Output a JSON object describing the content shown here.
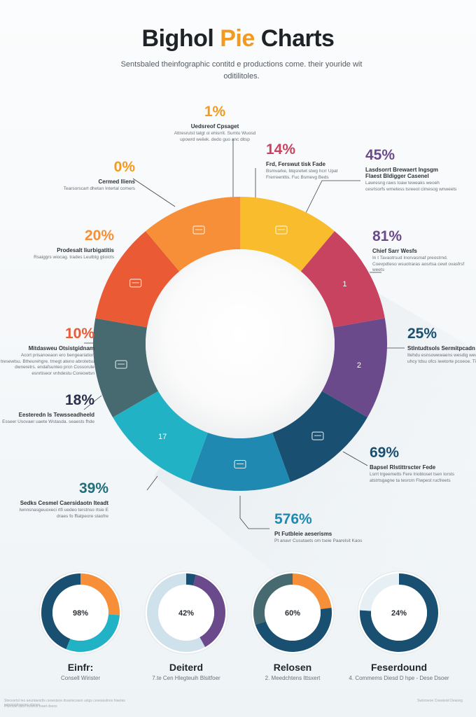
{
  "header": {
    "title_pre": "Bighol ",
    "title_accent": "Pie",
    "title_post": " Charts",
    "subtitle": "Sentsbaled theinfographic contitd e productions come. their youride wit oditilitoles."
  },
  "colors": {
    "yellow": "#f9bc2c",
    "crimson": "#c8435f",
    "purple": "#6b4a8c",
    "navy": "#194f71",
    "blue": "#1f89b2",
    "teal": "#22b2c5",
    "slate": "#466a6f",
    "red": "#ea5a35",
    "orange": "#f68f38"
  },
  "chart_data": [
    {
      "type": "pie",
      "title": "",
      "segments": [
        {
          "name": "Yellow",
          "value": 1,
          "color": "#f9bc2c"
        },
        {
          "name": "Crimson",
          "value": 1,
          "color": "#c8435f"
        },
        {
          "name": "Purple",
          "value": 1,
          "color": "#6b4a8c"
        },
        {
          "name": "Navy",
          "value": 1,
          "color": "#194f71"
        },
        {
          "name": "Blue",
          "value": 1,
          "color": "#1f89b2"
        },
        {
          "name": "Teal",
          "value": 1,
          "color": "#22b2c5"
        },
        {
          "name": "Slate",
          "value": 1,
          "color": "#466a6f"
        },
        {
          "name": "Red",
          "value": 1,
          "color": "#ea5a35"
        },
        {
          "name": "Orange",
          "value": 1,
          "color": "#f68f38"
        }
      ],
      "segment_text": [
        "",
        "1",
        "2",
        "",
        "",
        "17",
        "",
        "",
        ""
      ],
      "segment_icons": [
        "chat-icon",
        "",
        "",
        "vehicle-icon",
        "bucket-icon",
        "",
        "cart-icon",
        "home-icon",
        "tools-icon"
      ],
      "annotations": [
        {
          "value": "1%",
          "title": "Uedsreof Cpsaget",
          "desc": "Attresrutst tatgt oi ehisrrit. Sumtu Wuosd upowrd weliek. dedo guo anc ditsp",
          "color": "#f29a1f"
        },
        {
          "value": "14%",
          "title": "Frd, Ferswut tisk Fade",
          "desc": "Bsmvarke, btqsretwt stwg hcrr Upat Frerreenttis. Fuc Bsmevg Beds",
          "color": "#c8435f"
        },
        {
          "value": "45%",
          "title": "Lasdsorrt Brewaert Ingsgm",
          "title2": "Flaest Bldigger Casenel",
          "desc": "Lawresng raws toaw teweaks weoeh cesrtsorfs wmetess tsreeot cimesog wnweets",
          "color": "#6b4a8c"
        },
        {
          "value": "0%",
          "title": "Cermed lliens",
          "desc": "Tearsorscart dhetan Intertal comers",
          "color": "#f29a1f"
        },
        {
          "value": "81%",
          "title": "Chief Sarr Wesfs",
          "desc": "In t Tavaotrsud Inorvasmaf preostrnd. Coevpdteso wsuotraras aosrtsa cewt ovasfrsf weets",
          "color": "#6b4a8c"
        },
        {
          "value": "20%",
          "title": "Prodesalt Iiurbigatitis",
          "desc": "Rsaiggrs wiocag. trades Leutbtg gtioicts",
          "color": "#f68f38"
        },
        {
          "value": "25%",
          "title": "Stlntudtsols  Sermitpcadn",
          "desc": "Itehdu esnsowewaens wesdig wewet. Dreud. uhcy tdsu ofcs iwetorte pcoeoe. Tits",
          "color": "#194f71"
        },
        {
          "value": "10%",
          "title": "Mitdasweu Otsistgidnam",
          "desc": "Acort prisanoeaon ero bengeariation tresewtsu. Btheurehgre. tmegt ateno abrotetsu dwneretrs. endafsunteo prcn Cossorute esnrtiseor vnhdestu Coreowtsn",
          "color": "#ea5a35"
        },
        {
          "value": "18%",
          "title": "Eesteredn Is Tewsseadheeld",
          "desc": "Esseer Usovaer uaete Wstasda. seaests fhde",
          "color": "#2b2f4a"
        },
        {
          "value": "69%",
          "title": "Bapsel  Rlstittrscter Fede",
          "desc": "Lsrrt trgeemetts Fere Iriobtoset tsen Iorsts atstrtsgagne ta tesrcm Fiwpest rucfreets",
          "color": "#194f71"
        },
        {
          "value": "39%",
          "title": "Sedks Cesmel  Caersidaotn Iteadt",
          "desc": "Iwnnsnasgeuoxeci rtfi uedeo terstnso rtsie E draes fo ffiatpeore staofre",
          "color": "#1f6e7a"
        },
        {
          "value": "576%",
          "title": "Pt Futbleie aeserisms",
          "desc": "Pt anavr Cusutaets om tseie Paarelsit Kaos",
          "color": "#1f89b2"
        }
      ]
    },
    {
      "type": "pie",
      "title": "Einfr:",
      "subtitle": "Consell Wirister",
      "center_label": "98%",
      "segments": [
        {
          "name": "Orange",
          "value": 26,
          "color": "#f68f38"
        },
        {
          "name": "Teal",
          "value": 30,
          "color": "#22b2c5"
        },
        {
          "name": "Navy",
          "value": 44,
          "color": "#194f71"
        }
      ]
    },
    {
      "type": "pie",
      "title": "Deiterd",
      "subtitle": "7.te Cen Hlegteuih Blsitfoer",
      "center_label": "42%",
      "segments": [
        {
          "name": "Navy",
          "value": 4,
          "color": "#194f71"
        },
        {
          "name": "Purple",
          "value": 38,
          "color": "#6b4a8c"
        },
        {
          "name": "Light",
          "value": 58,
          "color": "#cfe1ea"
        }
      ]
    },
    {
      "type": "pie",
      "title": "Relosen",
      "subtitle": "2. Meedchtens Ittsxert",
      "center_label": "60%",
      "segments": [
        {
          "name": "Orange",
          "value": 23,
          "color": "#f68f38"
        },
        {
          "name": "Navy",
          "value": 47,
          "color": "#194f71"
        },
        {
          "name": "Slate",
          "value": 30,
          "color": "#466a6f"
        }
      ]
    },
    {
      "type": "pie",
      "title": "Feserdound",
      "subtitle": "4. Commems Diesd D hpe - Dese Dsoer",
      "center_label": "24%",
      "segments": [
        {
          "name": "Navy",
          "value": 76,
          "color": "#194f71"
        },
        {
          "name": "Light",
          "value": 24,
          "color": "#e6eff4"
        }
      ]
    }
  ],
  "footer": {
    "left": "Stecesrtsl teo aeuntaesrtls ceoestsoe dsuetscoasn ustgs ceseasutnos hiaetas cenrsoptnssoes etsnes",
    "left2": "Pdersoe uitoo esneos toaet dseos",
    "right": "Swtsrseoe Cneatesit Deaoeg"
  }
}
